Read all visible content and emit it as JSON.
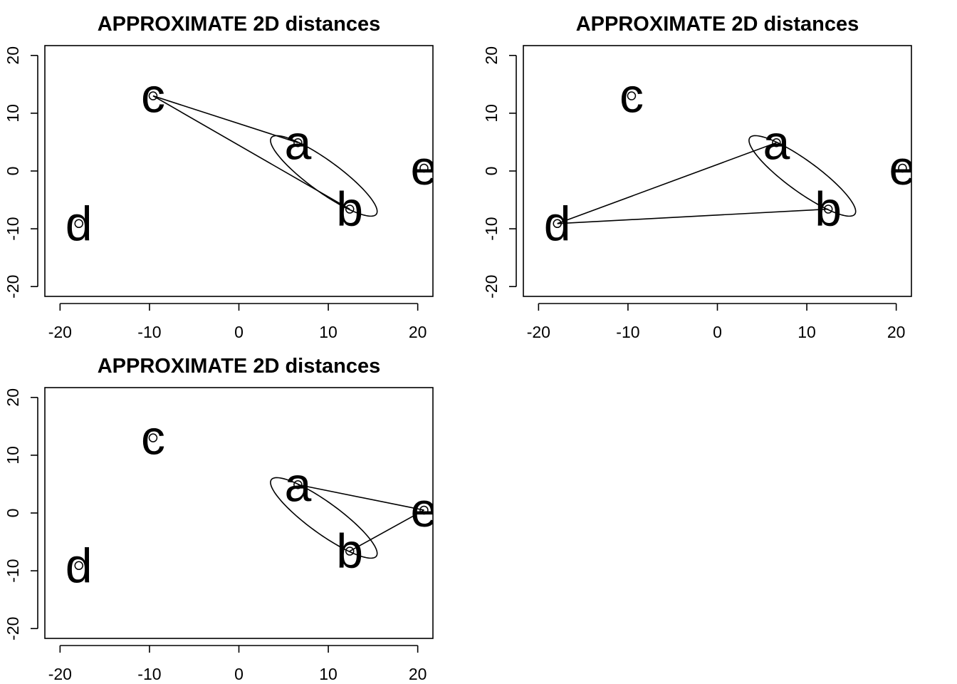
{
  "chart_data": [
    {
      "type": "scatter",
      "title": "APPROXIMATE 2D distances",
      "xlim": [
        -21.7,
        21.7
      ],
      "ylim": [
        -21.7,
        21.7
      ],
      "xticks": [
        "-20",
        "-10",
        "0",
        "10",
        "20"
      ],
      "yticks": [
        "-20",
        "-10",
        "0",
        "10",
        "20"
      ],
      "grid": false,
      "points": [
        {
          "label": "a",
          "x": 6.6,
          "y": 4.9
        },
        {
          "label": "b",
          "x": 12.4,
          "y": -6.6
        },
        {
          "label": "c",
          "x": -9.6,
          "y": 13.0
        },
        {
          "label": "d",
          "x": -17.9,
          "y": -9.1
        },
        {
          "label": "e",
          "x": 20.7,
          "y": 0.5
        }
      ],
      "ellipse": {
        "cx": 9.5,
        "cy": -0.85,
        "major_half": 8.9,
        "minor_half": 2.2,
        "angle_deg": -50
      },
      "connections": [
        [
          "c",
          "a"
        ],
        [
          "c",
          "b"
        ]
      ]
    },
    {
      "type": "scatter",
      "title": "APPROXIMATE 2D distances",
      "xlim": [
        -21.7,
        21.7
      ],
      "ylim": [
        -21.7,
        21.7
      ],
      "xticks": [
        "-20",
        "-10",
        "0",
        "10",
        "20"
      ],
      "yticks": [
        "-20",
        "-10",
        "0",
        "10",
        "20"
      ],
      "grid": false,
      "points": [
        {
          "label": "a",
          "x": 6.6,
          "y": 4.9
        },
        {
          "label": "b",
          "x": 12.4,
          "y": -6.6
        },
        {
          "label": "c",
          "x": -9.6,
          "y": 13.0
        },
        {
          "label": "d",
          "x": -17.9,
          "y": -9.1
        },
        {
          "label": "e",
          "x": 20.7,
          "y": 0.5
        }
      ],
      "ellipse": {
        "cx": 9.5,
        "cy": -0.85,
        "major_half": 8.9,
        "minor_half": 2.2,
        "angle_deg": -50
      },
      "connections": [
        [
          "d",
          "a"
        ],
        [
          "d",
          "b"
        ]
      ]
    },
    {
      "type": "scatter",
      "title": "APPROXIMATE 2D distances",
      "xlim": [
        -21.7,
        21.7
      ],
      "ylim": [
        -21.7,
        21.7
      ],
      "xticks": [
        "-20",
        "-10",
        "0",
        "10",
        "20"
      ],
      "yticks": [
        "-20",
        "-10",
        "0",
        "10",
        "20"
      ],
      "grid": false,
      "points": [
        {
          "label": "a",
          "x": 6.6,
          "y": 4.9
        },
        {
          "label": "b",
          "x": 12.4,
          "y": -6.6
        },
        {
          "label": "c",
          "x": -9.6,
          "y": 13.0
        },
        {
          "label": "d",
          "x": -17.9,
          "y": -9.1
        },
        {
          "label": "e",
          "x": 20.7,
          "y": 0.5
        }
      ],
      "ellipse": {
        "cx": 9.5,
        "cy": -0.85,
        "major_half": 8.9,
        "minor_half": 2.2,
        "angle_deg": -50
      },
      "connections": [
        [
          "e",
          "a"
        ],
        [
          "e",
          "b"
        ]
      ]
    }
  ]
}
